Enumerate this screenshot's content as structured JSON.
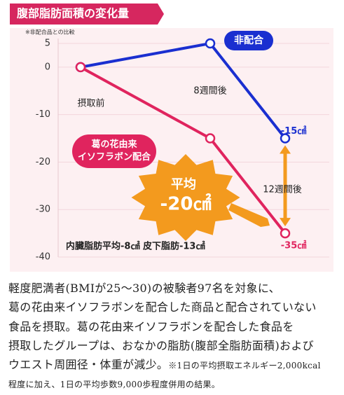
{
  "header": {
    "title": "腹部脂肪面積の変化量",
    "note": "※非配合品との比較"
  },
  "chart_data": {
    "type": "line",
    "categories": [
      "摂取前",
      "8週間後",
      "12週間後"
    ],
    "series": [
      {
        "name": "非配合",
        "color": "#1a2fd0",
        "values": [
          0,
          5,
          -15
        ],
        "value_labels": [
          null,
          null,
          "-15㎠"
        ]
      },
      {
        "name": "葛の花由来\nイソフラボン配合",
        "color": "#e0245e",
        "values": [
          0,
          -15,
          -35
        ],
        "value_labels": [
          null,
          null,
          "-35㎠"
        ]
      }
    ],
    "ylim": [
      -40,
      5
    ],
    "yticks": [
      5,
      0,
      -10,
      -20,
      -30,
      -40
    ],
    "grid": true,
    "annotations": {
      "average_label": "平均",
      "average_value": "-20㎠",
      "breakdown": "内臓脂肪平均-8㎠ 皮下脂肪-13㎠"
    }
  },
  "description": [
    "軽度肥満者(BMIが25～30)の被験者97名を対象に、",
    "葛の花由来イソフラボンを配合した商品と配合されていない",
    "食品を摂取。葛の花由来イソフラボンを配合した食品を",
    "摂取したグループは、おなかの脂肪(腹部全脂肪面積)および",
    "ウエスト周囲径・体重が減少。"
  ],
  "footnote": [
    "※1日の平均摂取エネルギー2,000kcal",
    "程度に加え、1日の平均歩数9,000歩程度併用の結果。"
  ]
}
